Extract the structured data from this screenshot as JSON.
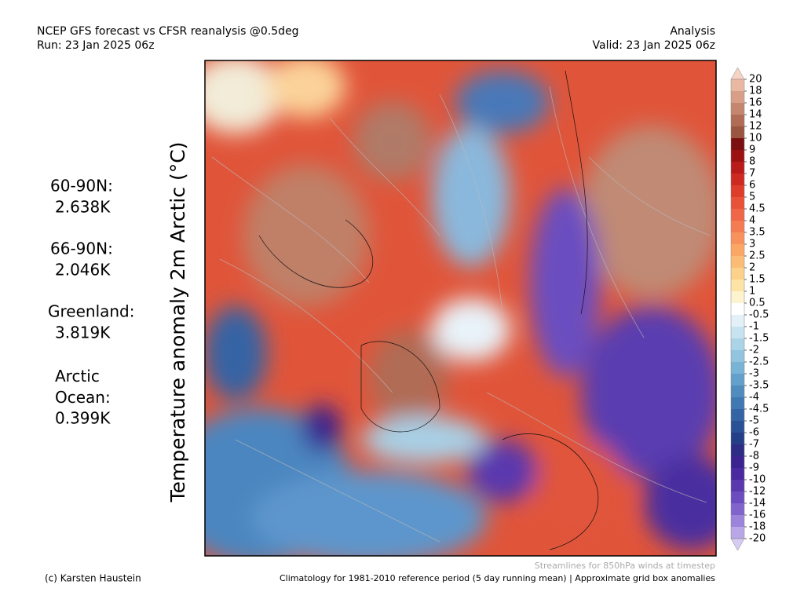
{
  "header": {
    "title": "NCEP GFS forecast vs CFSR reanalysis @0.5deg",
    "run": "Run: 23 Jan 2025 06z",
    "mode": "Analysis",
    "valid": "Valid: 23 Jan 2025 06z"
  },
  "axis_label": "Temperature anomaly 2m Arctic (°C)",
  "stats": [
    {
      "region": "60-90N:",
      "value": "2.638K"
    },
    {
      "region": "66-90N:",
      "value": "2.046K"
    },
    {
      "region": "Greenland:",
      "value": "3.819K"
    },
    {
      "region": "Arctic Ocean:",
      "value": "0.399K"
    }
  ],
  "colorbar": {
    "levels": [
      20,
      18,
      16,
      14,
      12,
      10,
      9,
      8,
      7,
      6,
      5,
      4.5,
      4,
      3.5,
      3,
      2.5,
      2,
      1.5,
      1,
      0.5,
      -0.5,
      -1,
      -1.5,
      -2,
      -2.5,
      -3,
      -3.5,
      -4,
      -4.5,
      -5,
      -6,
      -7,
      -8,
      -9,
      -10,
      -12,
      -14,
      -16,
      -18,
      -20
    ],
    "colors": [
      "#f7d3c4",
      "#e9b8a2",
      "#d89f88",
      "#c4866e",
      "#b06c55",
      "#9a5640",
      "#7c1010",
      "#9c1212",
      "#b91a1a",
      "#cd2b22",
      "#de3d2c",
      "#e85238",
      "#f06648",
      "#f57c52",
      "#f8925c",
      "#faa766",
      "#fbbc76",
      "#fcd18a",
      "#fde4a6",
      "#fef3cf",
      "#ffffff",
      "#e3f0f8",
      "#c8e3f0",
      "#acd4e8",
      "#92c4df",
      "#79b3d5",
      "#63a0ca",
      "#508cbe",
      "#4078b1",
      "#3464a4",
      "#2a5096",
      "#243f88",
      "#2e2d86",
      "#3b2390",
      "#4a2a9e",
      "#5a39ae",
      "#6c4dbf",
      "#8064cc",
      "#9b84da",
      "#b8a6e6",
      "#d6cbf3"
    ]
  },
  "footer": {
    "credit": "(c) Karsten Haustein",
    "streamlines": "Streamlines for 850hPa winds at timestep",
    "climatology": "Climatology for 1981-2010 reference period (5 day running mean) | Approximate grid box anomalies"
  }
}
